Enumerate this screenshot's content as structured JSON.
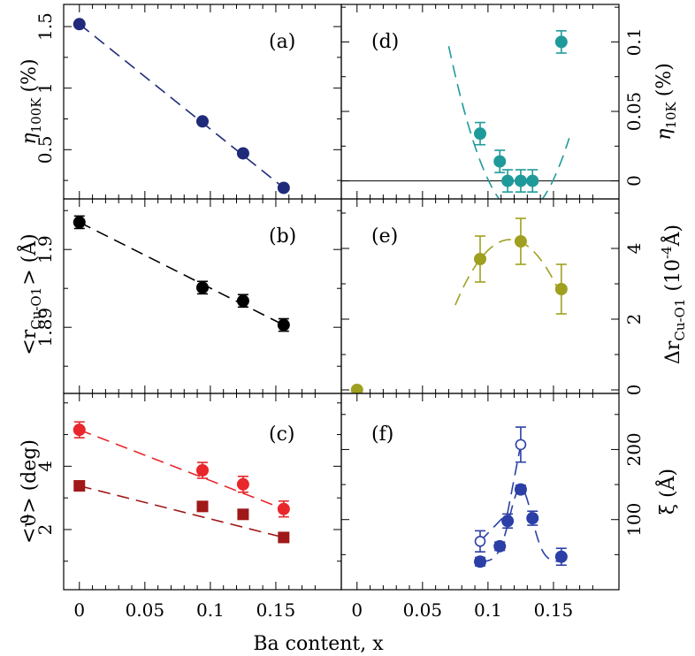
{
  "figure": {
    "xlabel": "Ba content, x",
    "x_ticks": [
      "0",
      "0.05",
      "0.1",
      "0.15"
    ],
    "xlim": [
      -0.012,
      0.2
    ]
  },
  "chart_data": [
    {
      "panel": "(a)",
      "type": "scatter",
      "ylabel": "η",
      "ylabel_sub": "100K",
      "ylabel_unit": "(%)",
      "ylim": [
        0.1,
        1.68
      ],
      "y_ticks": [
        {
          "v": 0.5,
          "label": "0.5"
        },
        {
          "v": 1,
          "label": "1"
        },
        {
          "v": 1.5,
          "label": "1.5"
        }
      ],
      "series": [
        {
          "name": "eta100K",
          "color": "#1f2a7a",
          "marker": "circle",
          "filled": true,
          "x": [
            0,
            0.094,
            0.125,
            0.156
          ],
          "y": [
            1.52,
            0.73,
            0.47,
            0.19
          ],
          "err": [
            0,
            0,
            0,
            0
          ],
          "fit": {
            "style": "dashed",
            "x": [
              0,
              0.156
            ],
            "y": [
              1.52,
              0.19
            ]
          }
        }
      ]
    },
    {
      "panel": "(b)",
      "type": "scatter",
      "ylabel": "<r",
      "ylabel_sub": "Cu-O1",
      "ylabel_unit": "> (Å)",
      "ylim": [
        1.8815,
        1.9065
      ],
      "y_ticks": [
        {
          "v": 1.89,
          "label": "1.89"
        },
        {
          "v": 1.9,
          "label": "1.9"
        }
      ],
      "series": [
        {
          "name": "rCuO1",
          "color": "#000000",
          "marker": "circle",
          "filled": true,
          "x": [
            0,
            0.094,
            0.125,
            0.156
          ],
          "y": [
            1.9035,
            1.8951,
            1.8934,
            1.8903
          ],
          "err": [
            0.0008,
            0.0008,
            0.0008,
            0.0008
          ],
          "fit": {
            "style": "dashed",
            "x": [
              0,
              0.156
            ],
            "y": [
              1.9035,
              1.8903
            ]
          }
        }
      ]
    },
    {
      "panel": "(c)",
      "type": "scatter",
      "ylabel": "<ϑ> (deg)",
      "ylim": [
        0.1,
        6.3
      ],
      "y_ticks": [
        {
          "v": 2,
          "label": "2"
        },
        {
          "v": 4,
          "label": "4"
        }
      ],
      "series": [
        {
          "name": "theta_red",
          "color": "#e8262b",
          "marker": "circle",
          "filled": true,
          "x": [
            0,
            0.094,
            0.125,
            0.156
          ],
          "y": [
            5.15,
            3.87,
            3.43,
            2.65
          ],
          "err": [
            0.25,
            0.25,
            0.25,
            0.25
          ],
          "fit": {
            "style": "dashed",
            "x": [
              0,
              0.156
            ],
            "y": [
              5.15,
              2.65
            ]
          }
        },
        {
          "name": "theta_darkred",
          "color": "#a01818",
          "marker": "square",
          "filled": true,
          "x": [
            0,
            0.094,
            0.125,
            0.156
          ],
          "y": [
            3.38,
            2.73,
            2.48,
            1.75
          ],
          "err": [
            0,
            0,
            0,
            0
          ],
          "fit": {
            "style": "dashed",
            "x": [
              0,
              0.156
            ],
            "y": [
              3.38,
              1.75
            ]
          }
        }
      ]
    },
    {
      "panel": "(d)",
      "type": "scatter",
      "ylabel": "η",
      "ylabel_sub": "10K",
      "ylabel_unit": "(%)",
      "ylim": [
        -0.013,
        0.127
      ],
      "y_ticks": [
        {
          "v": 0,
          "label": "0"
        },
        {
          "v": 0.05,
          "label": "0.05"
        },
        {
          "v": 0.1,
          "label": "0.1"
        }
      ],
      "hline": 0,
      "series": [
        {
          "name": "eta10K",
          "color": "#1f9a9a",
          "marker": "circle",
          "filled": true,
          "x": [
            0.094,
            0.109,
            0.115,
            0.125,
            0.134,
            0.156
          ],
          "y": [
            0.034,
            0.014,
            0.0,
            0.0,
            0.0,
            0.1
          ],
          "err": [
            0.008,
            0.008,
            0.008,
            0.008,
            0.008,
            0.008
          ],
          "fit": {
            "style": "dashed",
            "curve": "parabola",
            "vertex_x": 0.125,
            "vertex_y": -0.024,
            "k": 40,
            "x_from": 0.07,
            "x_to": 0.162
          }
        }
      ]
    },
    {
      "panel": "(e)",
      "type": "scatter",
      "ylabel": "Δr",
      "ylabel_sub": "Cu-O1",
      "ylabel_unit": "(10",
      "ylabel_exp": "-4",
      "ylabel_end": "Å)",
      "ylim": [
        -0.1,
        5.4
      ],
      "y_ticks": [
        {
          "v": 0,
          "label": "0"
        },
        {
          "v": 2,
          "label": "2"
        },
        {
          "v": 4,
          "label": "4"
        }
      ],
      "series": [
        {
          "name": "dr",
          "color": "#a0a020",
          "marker": "circle",
          "filled": true,
          "x": [
            0,
            0.094,
            0.125,
            0.156
          ],
          "y": [
            0.0,
            3.7,
            4.2,
            2.85
          ],
          "err": [
            0,
            0.65,
            0.65,
            0.7
          ],
          "fit": {
            "style": "dashed",
            "curve": "parabola",
            "vertex_x": 0.117,
            "vertex_y": 4.25,
            "k": 1050,
            "x_from": 0.075,
            "x_to": 0.156
          }
        }
      ]
    },
    {
      "panel": "(f)",
      "type": "scatter",
      "ylabel": "ξ (Å)",
      "ylim": [
        0,
        280
      ],
      "y_ticks": [
        {
          "v": 100,
          "label": "100"
        },
        {
          "v": 200,
          "label": "200"
        }
      ],
      "series": [
        {
          "name": "xi_filled",
          "color": "#2b3fa6",
          "marker": "circle",
          "filled": true,
          "x": [
            0.094,
            0.109,
            0.115,
            0.125,
            0.134,
            0.156
          ],
          "y": [
            40,
            62,
            98,
            143,
            102,
            47
          ],
          "err": [
            6,
            6,
            10,
            6,
            10,
            12
          ],
          "fit": {
            "style": "dashed",
            "curve": "gauss",
            "x_from": 0.094,
            "x_to": 0.156,
            "base": 40,
            "amp": 105,
            "mu": 0.125,
            "sigma": 0.0085
          }
        },
        {
          "name": "xi_open",
          "color": "#2b3fa6",
          "marker": "circle",
          "filled": false,
          "x": [
            0.094,
            0.125
          ],
          "y": [
            69,
            207
          ],
          "err": [
            15,
            25
          ],
          "fit": {
            "style": "dashed",
            "x": [
              0.094,
              0.115,
              0.125
            ],
            "y": [
              69,
              110,
              207
            ]
          }
        }
      ]
    }
  ]
}
